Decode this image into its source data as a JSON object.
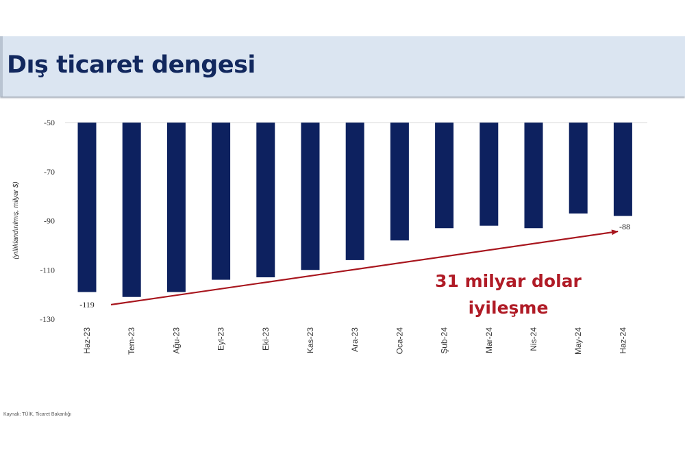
{
  "header": {
    "title": "Dış ticaret dengesi"
  },
  "footer": {
    "source": "Kaynak: TÜİK, Ticaret Bakanlığı"
  },
  "annotation": {
    "line1": "31 milyar dolar",
    "line2": "iyileşme",
    "color": "#b01b26"
  },
  "colors": {
    "bar": "#0d215f",
    "arrow": "#a8161e"
  },
  "chart_data": {
    "type": "bar",
    "title": "Dış ticaret dengesi",
    "xlabel": "",
    "ylabel": "(yıllıklandırılmış, milyar $)",
    "ylim": [
      -130,
      -50
    ],
    "yticks": [
      -50,
      -70,
      -90,
      -110,
      -130
    ],
    "categories": [
      "Haz-23",
      "Tem-23",
      "Ağu-23",
      "Eyl-23",
      "Eki-23",
      "Kas-23",
      "Ara-23",
      "Oca-24",
      "Şub-24",
      "Mar-24",
      "Nis-24",
      "May-24",
      "Haz-24"
    ],
    "values": [
      -119,
      -121,
      -119,
      -114,
      -113,
      -110,
      -106,
      -98,
      -93,
      -92,
      -93,
      -87,
      -88
    ],
    "data_labels": {
      "Haz-23": "-119",
      "Haz-24": "-88"
    },
    "grid": false,
    "annotations": [
      "31 milyar dolar iyileşme",
      "arrow from -119 (Haz-23) to -88 (Haz-24)"
    ]
  }
}
